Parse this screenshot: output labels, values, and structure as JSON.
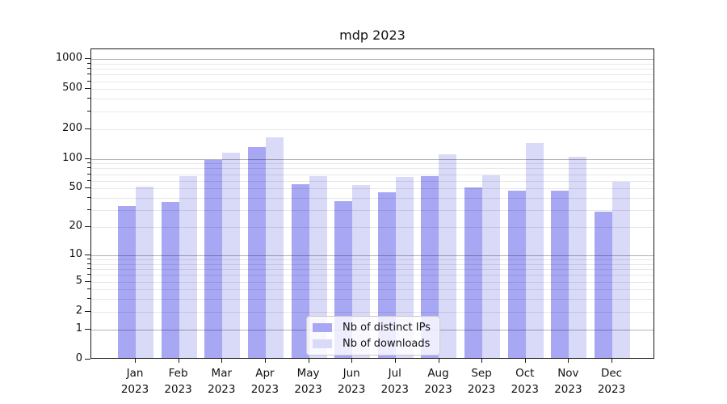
{
  "chart_data": {
    "type": "bar",
    "title": "mdp 2023",
    "categories": [
      "Jan",
      "Feb",
      "Mar",
      "Apr",
      "May",
      "Jun",
      "Jul",
      "Aug",
      "Sep",
      "Oct",
      "Nov",
      "Dec"
    ],
    "category_year": "2023",
    "series": [
      {
        "name": "Nb of distinct IPs",
        "color": "#a7a7f4",
        "values": [
          32,
          35,
          94,
          127,
          53,
          36,
          44,
          64,
          49,
          46,
          46,
          28
        ]
      },
      {
        "name": "Nb of downloads",
        "color": "#d9d9f8",
        "values": [
          50,
          64,
          112,
          157,
          64,
          52,
          63,
          107,
          66,
          140,
          102,
          56
        ]
      }
    ],
    "yscale": "log1p",
    "ylim": [
      0,
      1250
    ],
    "yticks": [
      1000,
      500,
      200,
      100,
      50,
      20,
      10,
      5,
      2,
      1,
      0
    ],
    "grid_major_yvalues": [
      1,
      10,
      100,
      1000
    ],
    "grid_minor_yvalues": [
      2,
      3,
      4,
      5,
      6,
      7,
      8,
      9,
      20,
      30,
      40,
      50,
      60,
      70,
      80,
      90,
      200,
      300,
      400,
      500,
      600,
      700,
      800,
      900
    ],
    "grid": "horizontal, major+minor, drawn above bars",
    "legend_position": "lower-center",
    "xlabel": "",
    "ylabel": ""
  }
}
